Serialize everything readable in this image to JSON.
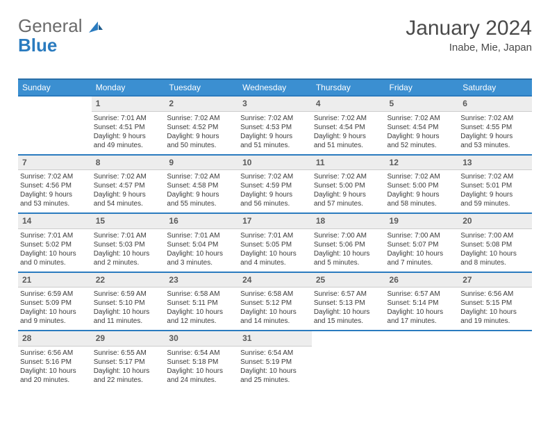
{
  "brand": {
    "part1": "General",
    "part2": "Blue"
  },
  "title": "January 2024",
  "location": "Inabe, Mie, Japan",
  "colors": {
    "header_bg": "#3b8fd1",
    "header_border": "#2a6fa8",
    "row_border": "#2a7bbf",
    "daynum_bg": "#ededed",
    "text": "#3a3a3a",
    "title_text": "#4a4a4a",
    "brand_gray": "#6b6b6b",
    "brand_blue": "#2a7bbf"
  },
  "daynames": [
    "Sunday",
    "Monday",
    "Tuesday",
    "Wednesday",
    "Thursday",
    "Friday",
    "Saturday"
  ],
  "weeks": [
    {
      "nums": [
        "",
        "1",
        "2",
        "3",
        "4",
        "5",
        "6"
      ],
      "cells": [
        null,
        {
          "sr": "Sunrise: 7:01 AM",
          "ss": "Sunset: 4:51 PM",
          "d1": "Daylight: 9 hours",
          "d2": "and 49 minutes."
        },
        {
          "sr": "Sunrise: 7:02 AM",
          "ss": "Sunset: 4:52 PM",
          "d1": "Daylight: 9 hours",
          "d2": "and 50 minutes."
        },
        {
          "sr": "Sunrise: 7:02 AM",
          "ss": "Sunset: 4:53 PM",
          "d1": "Daylight: 9 hours",
          "d2": "and 51 minutes."
        },
        {
          "sr": "Sunrise: 7:02 AM",
          "ss": "Sunset: 4:54 PM",
          "d1": "Daylight: 9 hours",
          "d2": "and 51 minutes."
        },
        {
          "sr": "Sunrise: 7:02 AM",
          "ss": "Sunset: 4:54 PM",
          "d1": "Daylight: 9 hours",
          "d2": "and 52 minutes."
        },
        {
          "sr": "Sunrise: 7:02 AM",
          "ss": "Sunset: 4:55 PM",
          "d1": "Daylight: 9 hours",
          "d2": "and 53 minutes."
        }
      ]
    },
    {
      "nums": [
        "7",
        "8",
        "9",
        "10",
        "11",
        "12",
        "13"
      ],
      "cells": [
        {
          "sr": "Sunrise: 7:02 AM",
          "ss": "Sunset: 4:56 PM",
          "d1": "Daylight: 9 hours",
          "d2": "and 53 minutes."
        },
        {
          "sr": "Sunrise: 7:02 AM",
          "ss": "Sunset: 4:57 PM",
          "d1": "Daylight: 9 hours",
          "d2": "and 54 minutes."
        },
        {
          "sr": "Sunrise: 7:02 AM",
          "ss": "Sunset: 4:58 PM",
          "d1": "Daylight: 9 hours",
          "d2": "and 55 minutes."
        },
        {
          "sr": "Sunrise: 7:02 AM",
          "ss": "Sunset: 4:59 PM",
          "d1": "Daylight: 9 hours",
          "d2": "and 56 minutes."
        },
        {
          "sr": "Sunrise: 7:02 AM",
          "ss": "Sunset: 5:00 PM",
          "d1": "Daylight: 9 hours",
          "d2": "and 57 minutes."
        },
        {
          "sr": "Sunrise: 7:02 AM",
          "ss": "Sunset: 5:00 PM",
          "d1": "Daylight: 9 hours",
          "d2": "and 58 minutes."
        },
        {
          "sr": "Sunrise: 7:02 AM",
          "ss": "Sunset: 5:01 PM",
          "d1": "Daylight: 9 hours",
          "d2": "and 59 minutes."
        }
      ]
    },
    {
      "nums": [
        "14",
        "15",
        "16",
        "17",
        "18",
        "19",
        "20"
      ],
      "cells": [
        {
          "sr": "Sunrise: 7:01 AM",
          "ss": "Sunset: 5:02 PM",
          "d1": "Daylight: 10 hours",
          "d2": "and 0 minutes."
        },
        {
          "sr": "Sunrise: 7:01 AM",
          "ss": "Sunset: 5:03 PM",
          "d1": "Daylight: 10 hours",
          "d2": "and 2 minutes."
        },
        {
          "sr": "Sunrise: 7:01 AM",
          "ss": "Sunset: 5:04 PM",
          "d1": "Daylight: 10 hours",
          "d2": "and 3 minutes."
        },
        {
          "sr": "Sunrise: 7:01 AM",
          "ss": "Sunset: 5:05 PM",
          "d1": "Daylight: 10 hours",
          "d2": "and 4 minutes."
        },
        {
          "sr": "Sunrise: 7:00 AM",
          "ss": "Sunset: 5:06 PM",
          "d1": "Daylight: 10 hours",
          "d2": "and 5 minutes."
        },
        {
          "sr": "Sunrise: 7:00 AM",
          "ss": "Sunset: 5:07 PM",
          "d1": "Daylight: 10 hours",
          "d2": "and 7 minutes."
        },
        {
          "sr": "Sunrise: 7:00 AM",
          "ss": "Sunset: 5:08 PM",
          "d1": "Daylight: 10 hours",
          "d2": "and 8 minutes."
        }
      ]
    },
    {
      "nums": [
        "21",
        "22",
        "23",
        "24",
        "25",
        "26",
        "27"
      ],
      "cells": [
        {
          "sr": "Sunrise: 6:59 AM",
          "ss": "Sunset: 5:09 PM",
          "d1": "Daylight: 10 hours",
          "d2": "and 9 minutes."
        },
        {
          "sr": "Sunrise: 6:59 AM",
          "ss": "Sunset: 5:10 PM",
          "d1": "Daylight: 10 hours",
          "d2": "and 11 minutes."
        },
        {
          "sr": "Sunrise: 6:58 AM",
          "ss": "Sunset: 5:11 PM",
          "d1": "Daylight: 10 hours",
          "d2": "and 12 minutes."
        },
        {
          "sr": "Sunrise: 6:58 AM",
          "ss": "Sunset: 5:12 PM",
          "d1": "Daylight: 10 hours",
          "d2": "and 14 minutes."
        },
        {
          "sr": "Sunrise: 6:57 AM",
          "ss": "Sunset: 5:13 PM",
          "d1": "Daylight: 10 hours",
          "d2": "and 15 minutes."
        },
        {
          "sr": "Sunrise: 6:57 AM",
          "ss": "Sunset: 5:14 PM",
          "d1": "Daylight: 10 hours",
          "d2": "and 17 minutes."
        },
        {
          "sr": "Sunrise: 6:56 AM",
          "ss": "Sunset: 5:15 PM",
          "d1": "Daylight: 10 hours",
          "d2": "and 19 minutes."
        }
      ]
    },
    {
      "nums": [
        "28",
        "29",
        "30",
        "31",
        "",
        "",
        ""
      ],
      "cells": [
        {
          "sr": "Sunrise: 6:56 AM",
          "ss": "Sunset: 5:16 PM",
          "d1": "Daylight: 10 hours",
          "d2": "and 20 minutes."
        },
        {
          "sr": "Sunrise: 6:55 AM",
          "ss": "Sunset: 5:17 PM",
          "d1": "Daylight: 10 hours",
          "d2": "and 22 minutes."
        },
        {
          "sr": "Sunrise: 6:54 AM",
          "ss": "Sunset: 5:18 PM",
          "d1": "Daylight: 10 hours",
          "d2": "and 24 minutes."
        },
        {
          "sr": "Sunrise: 6:54 AM",
          "ss": "Sunset: 5:19 PM",
          "d1": "Daylight: 10 hours",
          "d2": "and 25 minutes."
        },
        null,
        null,
        null
      ]
    }
  ]
}
